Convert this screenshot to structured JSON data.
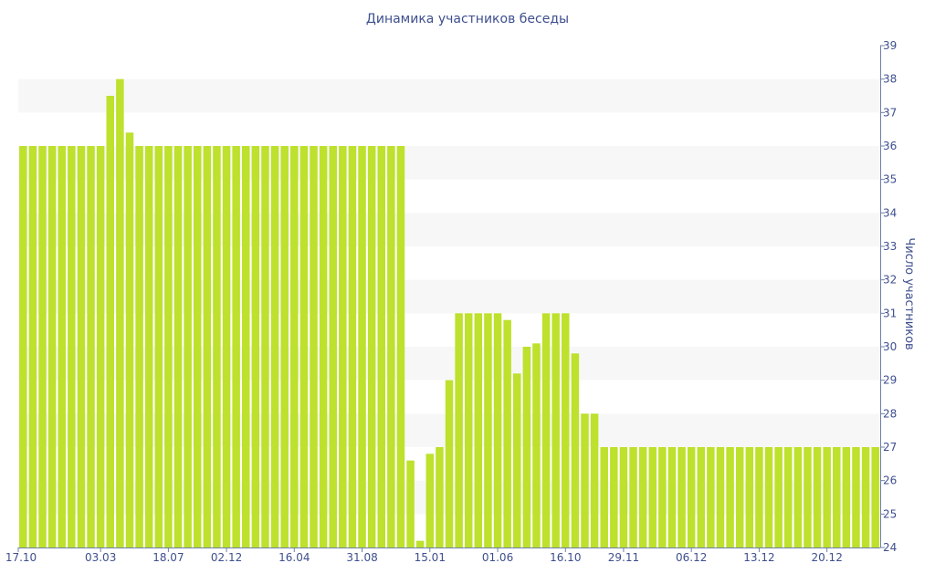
{
  "chart_data": {
    "type": "bar",
    "title": "Динамика участников беседы",
    "xlabel": "",
    "ylabel": "Число участников",
    "ylim": [
      24,
      39
    ],
    "yticks": [
      24,
      25,
      26,
      27,
      28,
      29,
      30,
      31,
      32,
      33,
      34,
      35,
      36,
      37,
      38,
      39
    ],
    "y_axis_side": "right",
    "grid": "alternating horizontal bands",
    "bar_color": "#bde12c",
    "band_color": "#f7f7f7",
    "axis_color": "#6f7fa8",
    "text_color": "#3e4f8e",
    "xtick_labels": [
      {
        "label": "17.10",
        "index": 0
      },
      {
        "label": "03.03",
        "index": 8
      },
      {
        "label": "18.07",
        "index": 15
      },
      {
        "label": "02.12",
        "index": 21
      },
      {
        "label": "16.04",
        "index": 28
      },
      {
        "label": "31.08",
        "index": 35
      },
      {
        "label": "15.01",
        "index": 42
      },
      {
        "label": "01.06",
        "index": 49
      },
      {
        "label": "16.10",
        "index": 56
      },
      {
        "label": "29.11",
        "index": 62
      },
      {
        "label": "06.12",
        "index": 69
      },
      {
        "label": "13.12",
        "index": 76
      },
      {
        "label": "20.12",
        "index": 83
      }
    ],
    "values": [
      36,
      36,
      36,
      36,
      36,
      36,
      36,
      36,
      36,
      37.5,
      38,
      36.4,
      36,
      36,
      36,
      36,
      36,
      36,
      36,
      36,
      36,
      36,
      36,
      36,
      36,
      36,
      36,
      36,
      36,
      36,
      36,
      36,
      36,
      36,
      36,
      36,
      36,
      36,
      36,
      36,
      26.6,
      24.2,
      26.8,
      27,
      29,
      31,
      31,
      31,
      31,
      31,
      30.8,
      29.2,
      30,
      30.1,
      31,
      31,
      31,
      29.8,
      28,
      28,
      27,
      27,
      27,
      27,
      27,
      27,
      27,
      27,
      27,
      27,
      27,
      27,
      27,
      27,
      27,
      27,
      27,
      27,
      27,
      27,
      27,
      27,
      27,
      27,
      27,
      27,
      27,
      27,
      27
    ]
  }
}
